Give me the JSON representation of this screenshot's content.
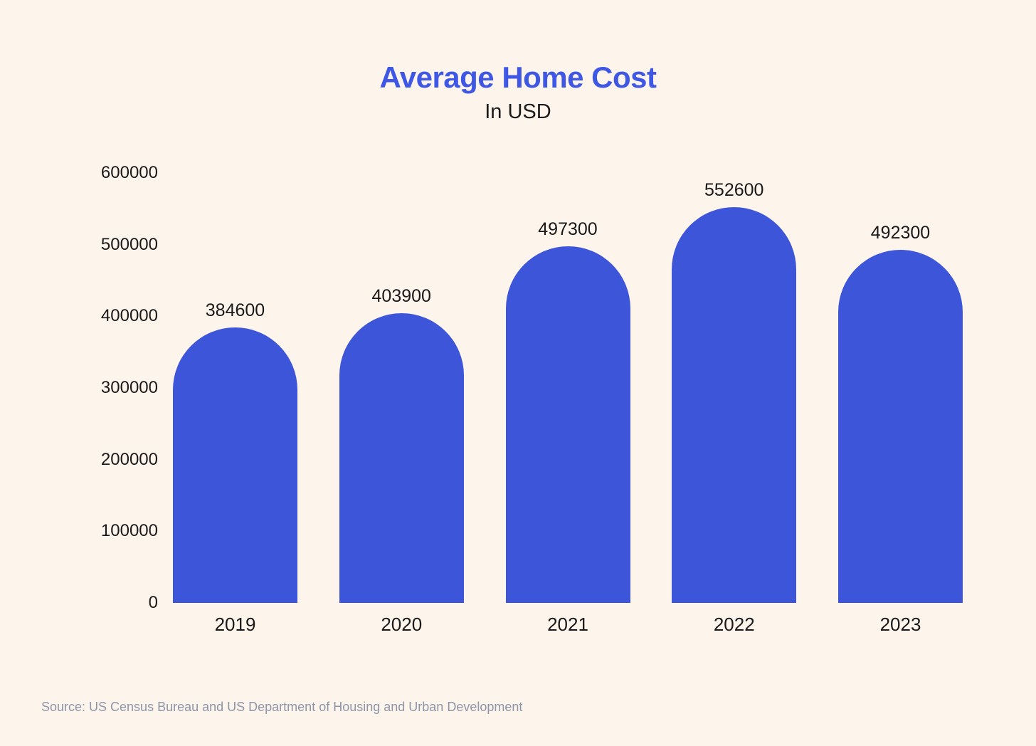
{
  "header": {
    "title": "Average Home Cost",
    "subtitle": "In USD"
  },
  "footer": {
    "source": "Source: US Census Bureau and US Department of Housing and Urban Development"
  },
  "colors": {
    "background": "#FDF5EC",
    "bar": "#3C55D9",
    "title": "#3E58E5",
    "label": "#1A1A1A",
    "source": "#8E95A8"
  },
  "chart_data": {
    "type": "bar",
    "title": "Average Home Cost",
    "subtitle": "In USD",
    "categories": [
      "2019",
      "2020",
      "2021",
      "2022",
      "2023"
    ],
    "values": [
      384600,
      403900,
      497300,
      552600,
      492300
    ],
    "xlabel": "",
    "ylabel": "",
    "ylim": [
      0,
      600000
    ],
    "yticks": [
      0,
      100000,
      200000,
      300000,
      400000,
      500000,
      600000
    ],
    "grid": false,
    "legend": false,
    "bar_style": "rounded-top",
    "data_labels": true
  }
}
